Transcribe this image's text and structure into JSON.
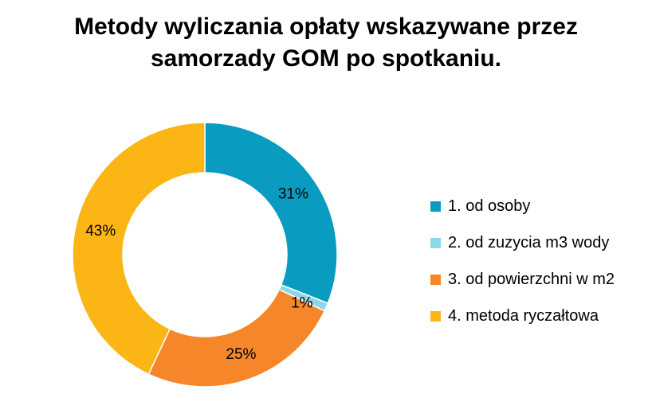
{
  "chart_data": {
    "type": "pie",
    "subtype": "donut",
    "title_lines": [
      "Metody wyliczania opłaty wskazywane przez",
      "samorzady GOM po spotkaniu."
    ],
    "legend_position": "right",
    "slices": [
      {
        "label": "1. od osoby",
        "value": 31,
        "display": "31%",
        "color": "#0a9cc0"
      },
      {
        "label": "2. od zuzycia m3 wody",
        "value": 1,
        "display": "1%",
        "color": "#8fd6e6"
      },
      {
        "label": "3. od powierzchni w m2",
        "value": 25,
        "display": "25%",
        "color": "#f5862a"
      },
      {
        "label": "4. metoda ryczałtowa",
        "value": 43,
        "display": "43%",
        "color": "#fbb514"
      }
    ]
  }
}
